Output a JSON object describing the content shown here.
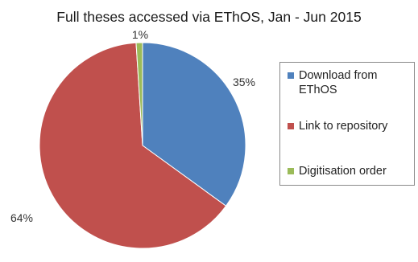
{
  "chart_data": {
    "type": "pie",
    "title": "Full theses accessed via EThOS, Jan - Jun 2015",
    "slices": [
      {
        "name": "Download from EThOS",
        "value": 35,
        "label": "35%",
        "color": "#4f81bd"
      },
      {
        "name": "Link to repository",
        "value": 64,
        "label": "64%",
        "color": "#c0504d"
      },
      {
        "name": "Digitisation order",
        "value": 1,
        "label": "1%",
        "color": "#9bbb59"
      }
    ],
    "start_position": "12 o'clock, clockwise",
    "legend_position": "right"
  }
}
